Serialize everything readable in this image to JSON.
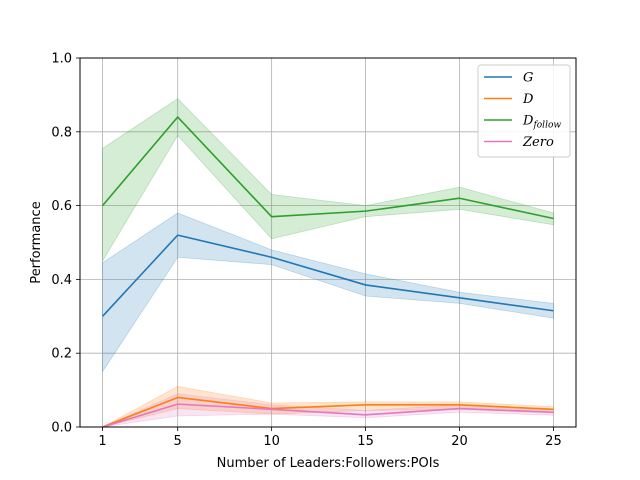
{
  "chart_data": {
    "type": "line",
    "title": "",
    "xlabel": "Number of Leaders:Followers:POIs",
    "ylabel": "Performance",
    "x": [
      1,
      5,
      10,
      15,
      20,
      25
    ],
    "xticks": [
      "1",
      "5",
      "10",
      "15",
      "20",
      "25"
    ],
    "xlim": [
      -0.2,
      26.2
    ],
    "ylim": [
      0.0,
      1.0
    ],
    "yticks": [
      "0.0",
      "0.2",
      "0.4",
      "0.6",
      "0.8",
      "1.0"
    ],
    "grid": true,
    "legend_position": "top-right",
    "series": [
      {
        "name": "G",
        "name_main": "G",
        "name_sub": "",
        "color": "#1f77b4",
        "values": [
          0.3,
          0.52,
          0.46,
          0.385,
          0.35,
          0.315
        ],
        "lower": [
          0.15,
          0.46,
          0.44,
          0.355,
          0.335,
          0.295
        ],
        "upper": [
          0.445,
          0.58,
          0.48,
          0.415,
          0.365,
          0.335
        ]
      },
      {
        "name": "D",
        "name_main": "D",
        "name_sub": "",
        "color": "#ff7f0e",
        "values": [
          0.0,
          0.08,
          0.05,
          0.06,
          0.06,
          0.048
        ],
        "lower": [
          0.0,
          0.05,
          0.035,
          0.045,
          0.048,
          0.038
        ],
        "upper": [
          0.0,
          0.11,
          0.065,
          0.068,
          0.068,
          0.055
        ]
      },
      {
        "name": "Dfollow",
        "name_main": "D",
        "name_sub": "follow",
        "color": "#2ca02c",
        "values": [
          0.6,
          0.84,
          0.57,
          0.585,
          0.62,
          0.565
        ],
        "lower": [
          0.45,
          0.79,
          0.51,
          0.57,
          0.59,
          0.548
        ],
        "upper": [
          0.755,
          0.89,
          0.63,
          0.6,
          0.65,
          0.58
        ]
      },
      {
        "name": "Zero",
        "name_main": "Zero",
        "name_sub": "",
        "color": "#e377c2",
        "values": [
          0.0,
          0.062,
          0.048,
          0.033,
          0.05,
          0.04
        ],
        "lower": [
          0.0,
          0.03,
          0.035,
          0.025,
          0.04,
          0.032
        ],
        "upper": [
          0.0,
          0.09,
          0.06,
          0.045,
          0.06,
          0.048
        ]
      }
    ]
  }
}
